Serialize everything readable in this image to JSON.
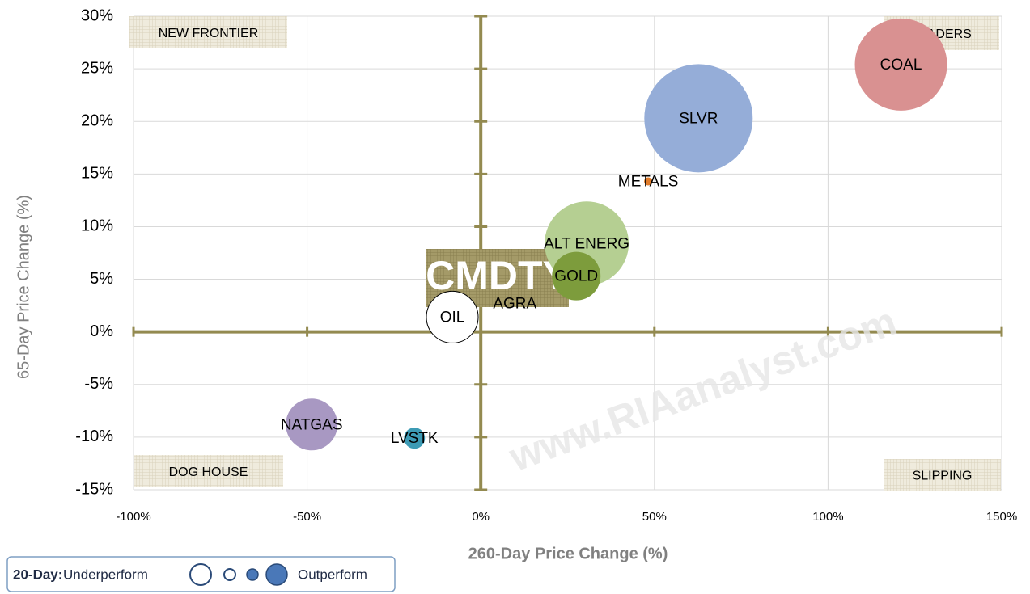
{
  "chart_data": {
    "type": "bubble",
    "x_label": "260-Day Price Change (%)",
    "y_label": "65-Day Price Change (%)",
    "xlim": [
      -100,
      150
    ],
    "xticks": [
      {
        "value": -100,
        "label": "-100%"
      },
      {
        "value": -50,
        "label": "-50%"
      },
      {
        "value": 0,
        "label": "0%"
      },
      {
        "value": 50,
        "label": "50%"
      },
      {
        "value": 100,
        "label": "100%"
      },
      {
        "value": 150,
        "label": "150%"
      }
    ],
    "ylim": [
      -15,
      30
    ],
    "yticks": [
      {
        "value": -15,
        "label": "-15%"
      },
      {
        "value": -10,
        "label": "-10%"
      },
      {
        "value": -5,
        "label": "-5%"
      },
      {
        "value": 0,
        "label": "0%"
      },
      {
        "value": 5,
        "label": "5%"
      },
      {
        "value": 10,
        "label": "10%"
      },
      {
        "value": 15,
        "label": "15%"
      },
      {
        "value": 20,
        "label": "20%"
      },
      {
        "value": 25,
        "label": "25%"
      },
      {
        "value": 30,
        "label": "30%"
      }
    ],
    "grid": true,
    "points": [
      {
        "label": "COAL",
        "x": 121,
        "y": 25.4,
        "size": 57,
        "color": "#d99191"
      },
      {
        "label": "SLVR",
        "x": 62.7,
        "y": 20.3,
        "size": 67,
        "color": "#95add8"
      },
      {
        "label": "METALS",
        "x": 48.2,
        "y": 14.3,
        "size": 5,
        "color": "#e07b2a"
      },
      {
        "label": "ALT ENERG",
        "x": 30.5,
        "y": 8.4,
        "size": 52,
        "color": "#b5cf92"
      },
      {
        "label": "GOLD",
        "x": 27.5,
        "y": 5.3,
        "size": 30,
        "color": "#7d9c3c"
      },
      {
        "label": "AGRA",
        "x": 9.8,
        "y": 2.7,
        "size": 2,
        "color": "#b8a860"
      },
      {
        "label": "OIL",
        "x": -8.2,
        "y": 1.4,
        "size": 32,
        "color": "#ffffff"
      },
      {
        "label": "NATGAS",
        "x": -48.7,
        "y": -8.8,
        "size": 32,
        "color": "#a898c2"
      },
      {
        "label": "LVSTK",
        "x": -19.1,
        "y": -10.1,
        "size": 13,
        "color": "#3d9bb5"
      }
    ],
    "quadrant_labels": [
      {
        "text": "NEW FRONTIER",
        "corner": "top-left"
      },
      {
        "text": "LEADERS",
        "corner": "top-right"
      },
      {
        "text": "DOG HOUSE",
        "corner": "bottom-left"
      },
      {
        "text": "SLIPPING",
        "corner": "bottom-right"
      }
    ],
    "center_label": "CMDTY",
    "watermark": "www.RIAanalyst.com",
    "legend": {
      "title": "20-Day:",
      "low": "Underperform",
      "high": "Outperform"
    }
  }
}
